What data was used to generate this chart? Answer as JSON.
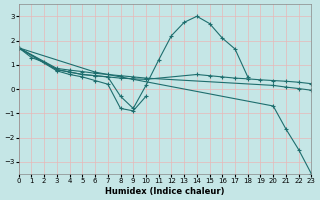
{
  "xlabel": "Humidex (Indice chaleur)",
  "xlim": [
    0,
    23
  ],
  "ylim": [
    -3.5,
    3.5
  ],
  "xticks": [
    0,
    1,
    2,
    3,
    4,
    5,
    6,
    7,
    8,
    9,
    10,
    11,
    12,
    13,
    14,
    15,
    16,
    17,
    18,
    19,
    20,
    21,
    22,
    23
  ],
  "yticks": [
    -3,
    -2,
    -1,
    0,
    1,
    2,
    3
  ],
  "bg_color": "#c5e6e6",
  "line_color": "#1e6e6e",
  "grid_color": "#e8b8b8",
  "series": [
    {
      "x": [
        0,
        1,
        2,
        3,
        4,
        5,
        6,
        7,
        8,
        9,
        10,
        11,
        12,
        13,
        14,
        15,
        16,
        17,
        18
      ],
      "y": [
        1.7,
        1.3,
        1.1,
        0.8,
        0.7,
        0.6,
        0.55,
        0.5,
        -0.3,
        -0.8,
        0.15,
        1.2,
        2.2,
        2.75,
        3.0,
        2.7,
        2.1,
        1.65,
        0.5
      ]
    },
    {
      "x": [
        0,
        3,
        4,
        5,
        6,
        7,
        8,
        9,
        10
      ],
      "y": [
        1.7,
        0.75,
        0.6,
        0.5,
        0.35,
        0.2,
        -0.8,
        -0.9,
        -0.3
      ]
    },
    {
      "x": [
        0,
        3,
        4,
        5,
        6,
        7,
        8,
        9,
        10,
        14,
        15,
        16,
        17,
        18,
        19,
        20,
        21,
        22,
        23
      ],
      "y": [
        1.7,
        0.8,
        0.7,
        0.6,
        0.55,
        0.5,
        0.45,
        0.42,
        0.4,
        0.6,
        0.55,
        0.5,
        0.45,
        0.42,
        0.38,
        0.35,
        0.32,
        0.28,
        0.22
      ]
    },
    {
      "x": [
        0,
        6,
        20,
        21,
        22,
        23
      ],
      "y": [
        1.7,
        0.7,
        -0.7,
        -1.65,
        -2.5,
        -3.5
      ]
    },
    {
      "x": [
        0,
        3,
        4,
        5,
        6,
        7,
        8,
        9,
        10,
        20,
        21,
        22,
        23
      ],
      "y": [
        1.7,
        0.85,
        0.78,
        0.72,
        0.65,
        0.6,
        0.55,
        0.5,
        0.45,
        0.15,
        0.08,
        0.02,
        -0.05
      ]
    }
  ]
}
